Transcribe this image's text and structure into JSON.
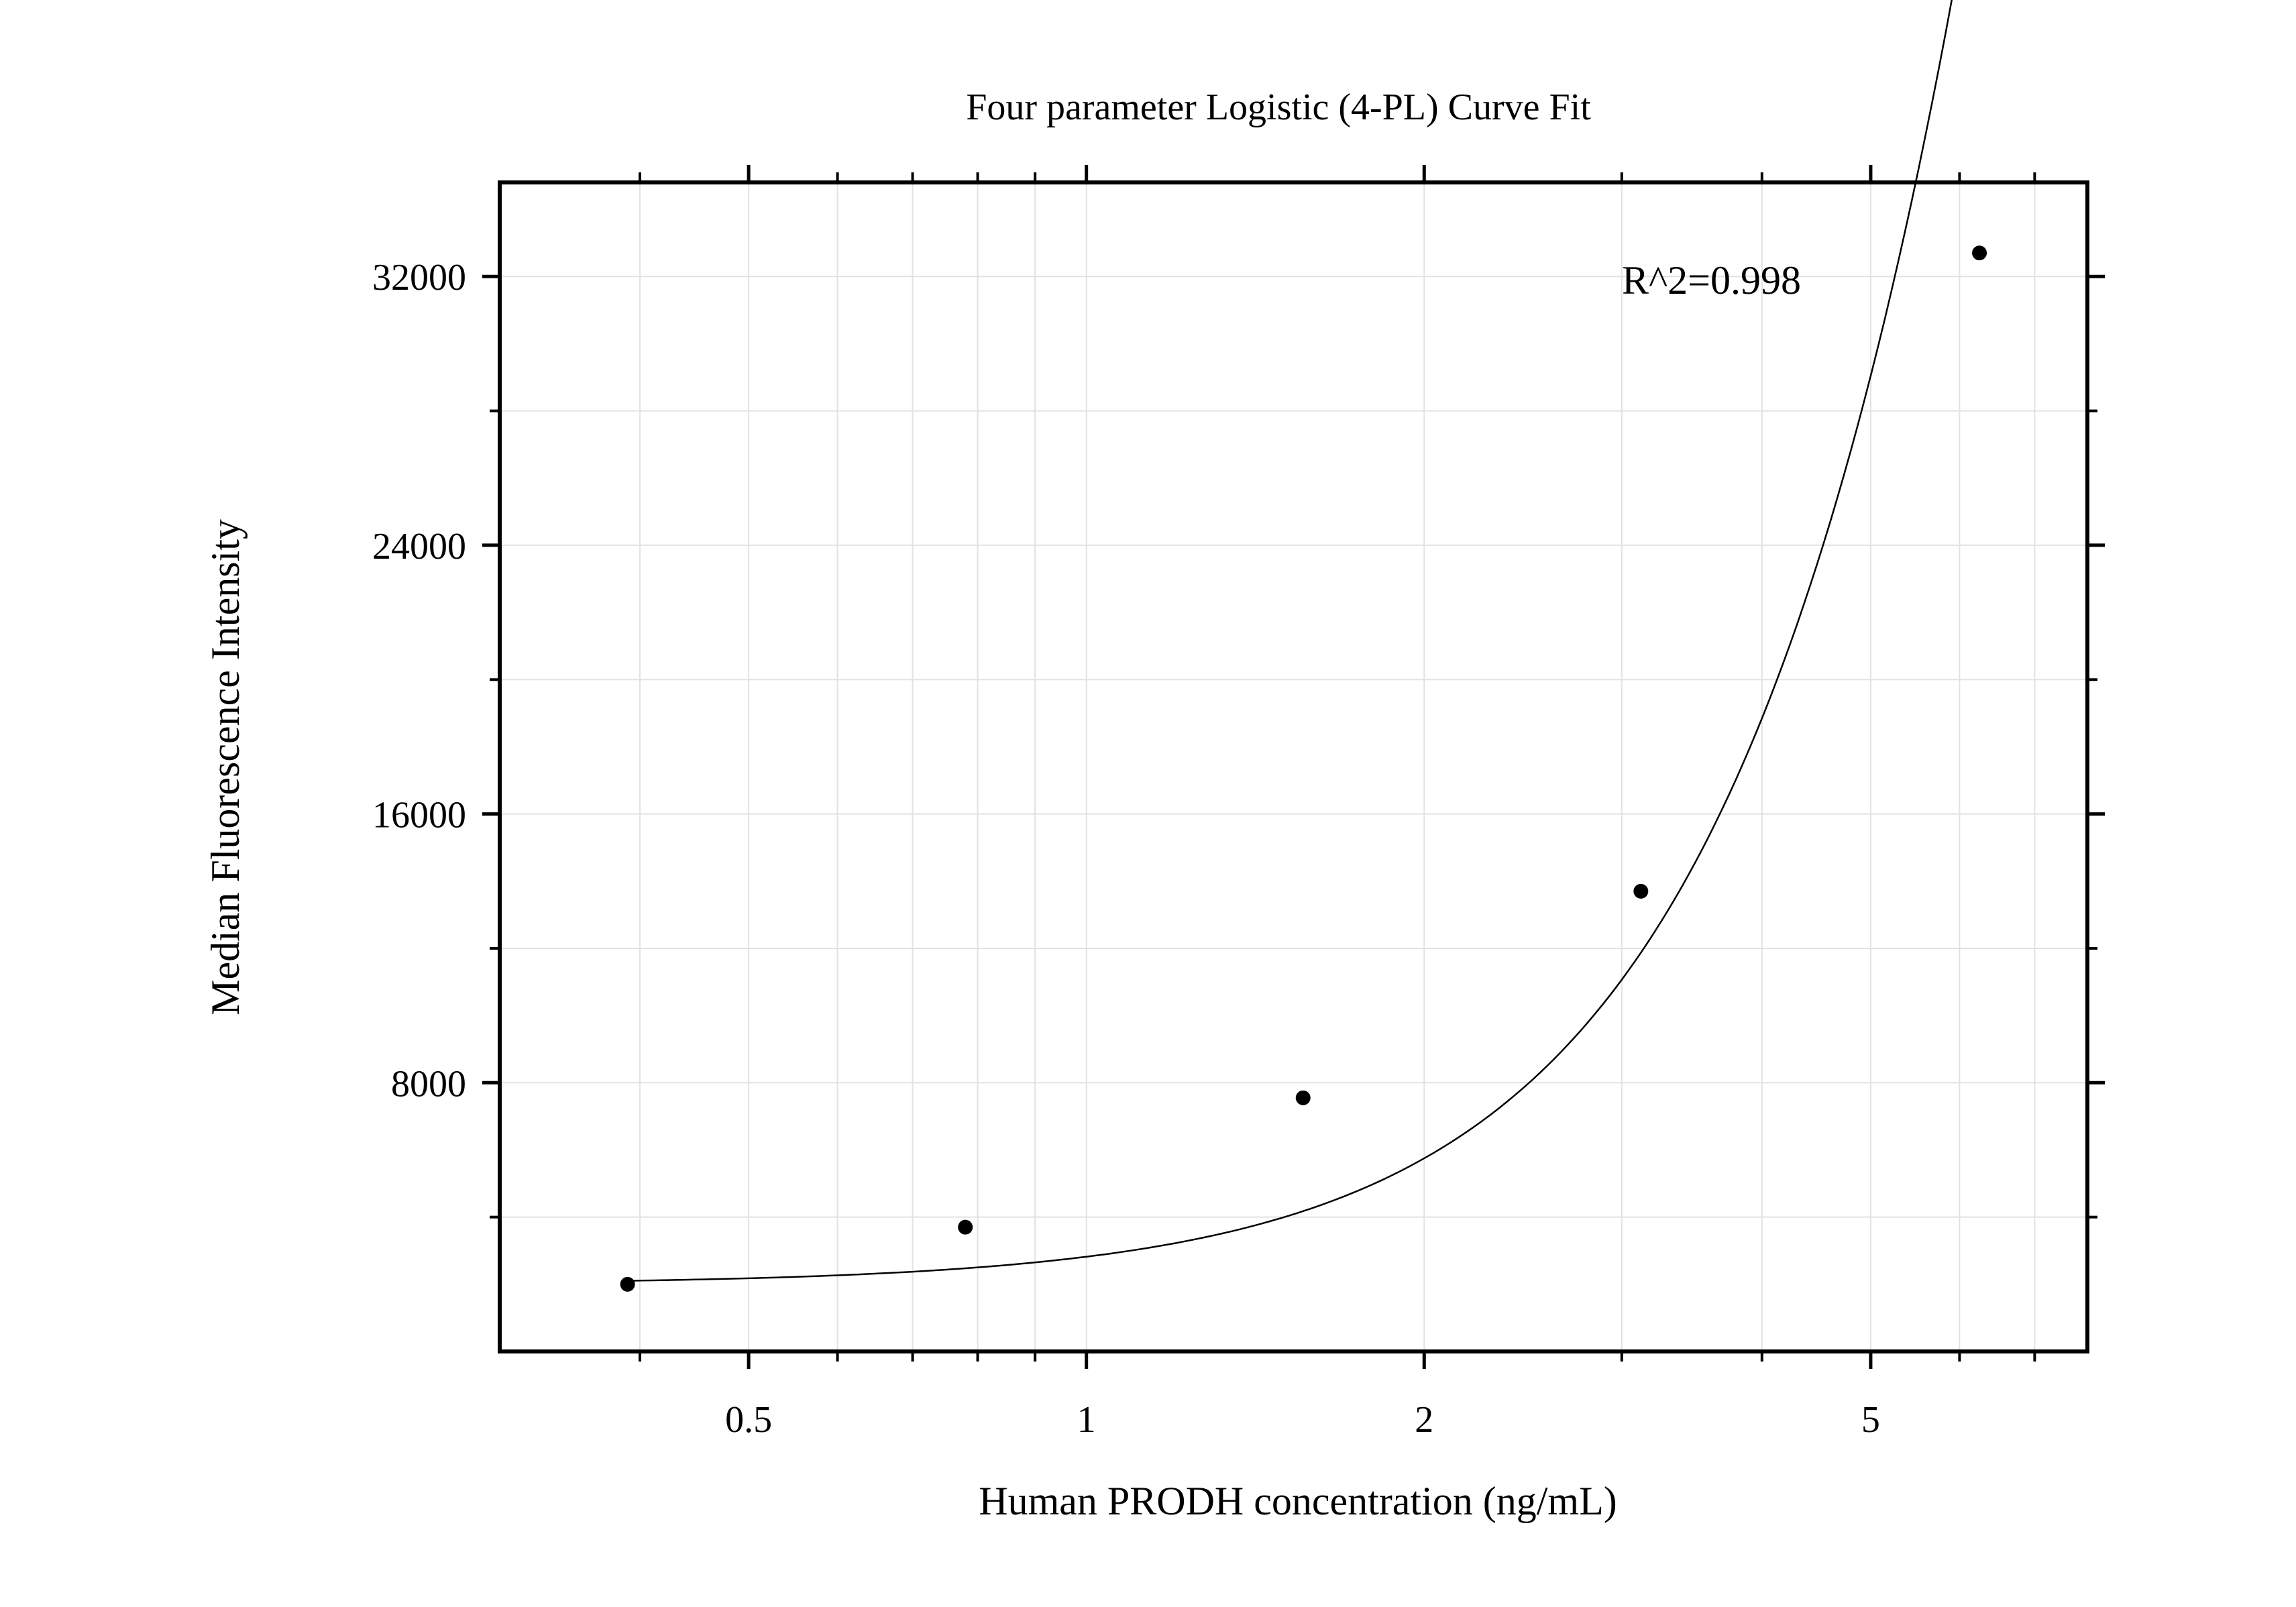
{
  "chart_data": {
    "type": "scatter",
    "title": "Four parameter Logistic (4-PL) Curve Fit",
    "xlabel": "Human PRODH concentration (ng/mL)",
    "ylabel": "Median Fluorescence Intensity",
    "x_scale": "log",
    "xlim": [
      0.3,
      7.8
    ],
    "ylim": [
      0,
      34800
    ],
    "x_ticks": [
      0.5,
      1,
      2,
      5
    ],
    "x_tick_labels": [
      "0.5",
      "1",
      "2",
      "5"
    ],
    "x_minor_ticks": [
      0.4,
      0.6,
      0.7,
      0.8,
      0.9,
      3,
      4,
      6,
      7
    ],
    "y_ticks": [
      8000,
      16000,
      24000,
      32000
    ],
    "y_tick_labels": [
      "8000",
      "16000",
      "24000",
      "32000"
    ],
    "y_minor_ticks": [
      4000,
      12000,
      20000,
      28000
    ],
    "grid": true,
    "annotation": "R^2=0.998",
    "series": [
      {
        "x": [
          0.39,
          0.78,
          1.56,
          3.12,
          6.25
        ],
        "y": [
          2000,
          3700,
          7550,
          13700,
          32700
        ],
        "marker": "circle",
        "color": "#000000"
      }
    ],
    "fit_curve": {
      "model": "4PL",
      "a": 2000,
      "b": 2.2,
      "c": 20,
      "d": 600000,
      "x_range": [
        0.39,
        6.25
      ],
      "color": "#000000"
    }
  }
}
